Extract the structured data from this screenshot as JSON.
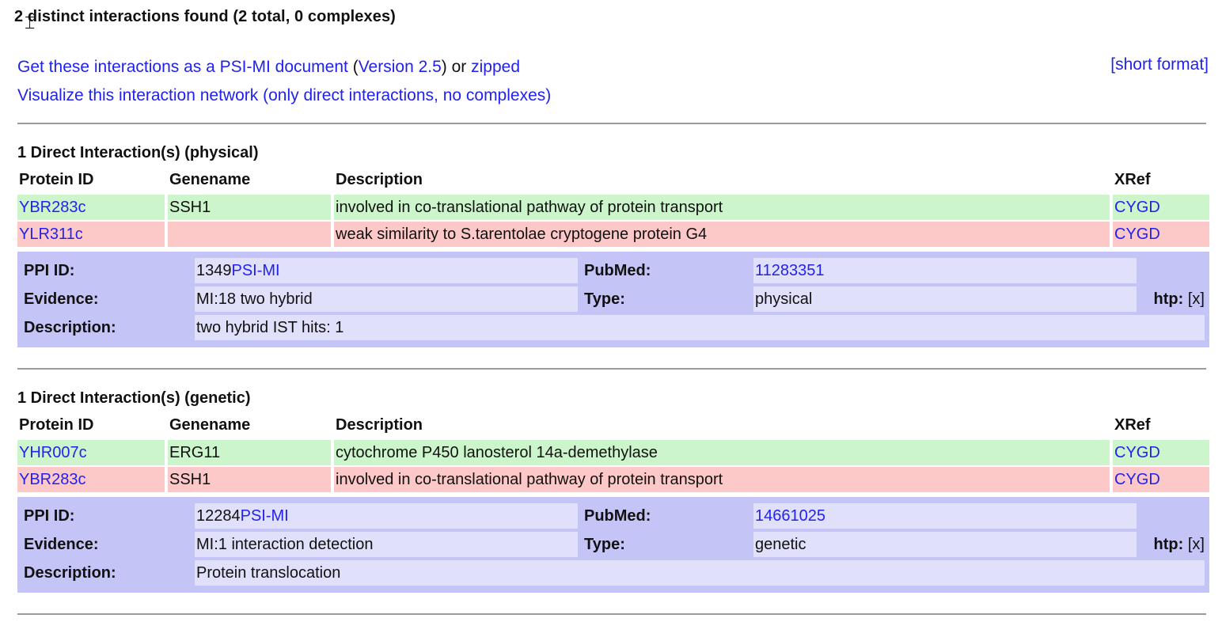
{
  "heading": "2 distinct interactions found (2 total, 0 complexes)",
  "links": {
    "psimi_doc": "Get these interactions as a PSI-MI document",
    "paren_open": " (",
    "version": "Version 2.5",
    "paren_close_or": ") or ",
    "zipped": "zipped",
    "visualize": "Visualize this interaction network (only direct interactions, no complexes)",
    "short_format": "[short format]"
  },
  "columns": {
    "protein_id": "Protein ID",
    "genename": "Genename",
    "description": "Description",
    "xref": "XRef"
  },
  "detail_labels": {
    "ppi_id": "PPI ID:",
    "pubmed": "PubMed:",
    "evidence": "Evidence:",
    "type": "Type:",
    "description": "Description:",
    "htp": "htp:",
    "htp_value": "[x]",
    "psimi": "PSI-MI"
  },
  "sections": [
    {
      "title": "1 Direct Interaction(s) (physical)",
      "proteins": [
        {
          "id": "YBR283c",
          "genename": "SSH1",
          "description": "involved in co-translational pathway of protein transport",
          "xref": "CYGD",
          "color": "#ccf5cc"
        },
        {
          "id": "YLR311c",
          "genename": "",
          "description": "weak similarity to S.tarentolae cryptogene protein G4",
          "xref": "CYGD",
          "color": "#fcc8c8"
        }
      ],
      "detail": {
        "ppi_id": "1349",
        "pubmed": "11283351",
        "evidence": "MI:18 two hybrid",
        "type": "physical",
        "description": "two hybrid IST hits: 1"
      }
    },
    {
      "title": "1 Direct Interaction(s) (genetic)",
      "proteins": [
        {
          "id": "YHR007c",
          "genename": "ERG11",
          "description": "cytochrome P450 lanosterol 14a-demethylase",
          "xref": "CYGD",
          "color": "#ccf5cc"
        },
        {
          "id": "YBR283c",
          "genename": "SSH1",
          "description": "involved in co-translational pathway of protein transport",
          "xref": "CYGD",
          "color": "#fcc8c8"
        }
      ],
      "detail": {
        "ppi_id": "12284",
        "pubmed": "14661025",
        "evidence": "MI:1 interaction detection",
        "type": "genetic",
        "description": "Protein translocation"
      }
    }
  ]
}
